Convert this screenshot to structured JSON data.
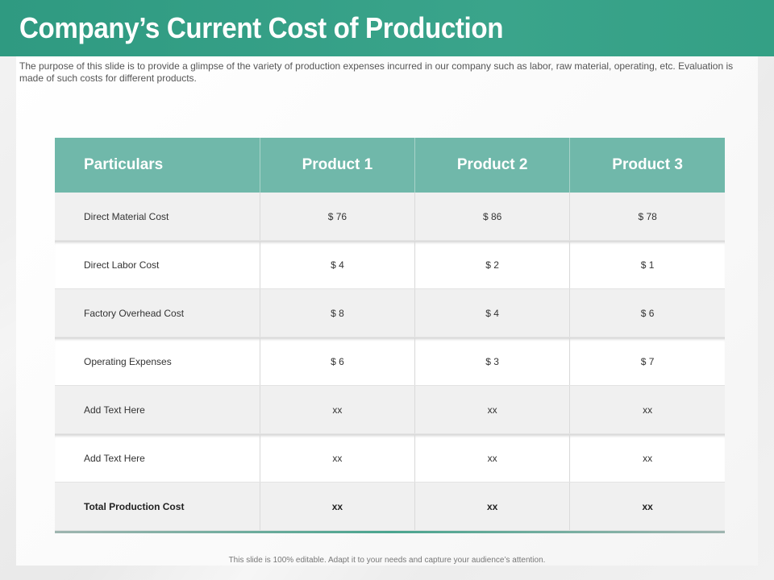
{
  "title": "Company’s Current Cost of Production",
  "subtitle": "The purpose of this slide is to provide a glimpse of the variety of production expenses incurred in our company such as labor, raw material, operating, etc. Evaluation is made of such costs for different products.",
  "table": {
    "headers": [
      "Particulars",
      "Product 1",
      "Product 2",
      "Product 3"
    ],
    "rows": [
      {
        "label": "Direct Material Cost",
        "values": [
          "$ 76",
          "$ 86",
          "$ 78"
        ]
      },
      {
        "label": "Direct Labor Cost",
        "values": [
          "$ 4",
          "$ 2",
          "$ 1"
        ]
      },
      {
        "label": "Factory Overhead Cost",
        "values": [
          "$ 8",
          "$ 4",
          "$ 6"
        ]
      },
      {
        "label": "Operating Expenses",
        "values": [
          "$ 6",
          "$ 3",
          "$ 7"
        ]
      },
      {
        "label": "Add Text Here",
        "values": [
          "xx",
          "xx",
          "xx"
        ]
      },
      {
        "label": "Add Text Here",
        "values": [
          "xx",
          "xx",
          "xx"
        ]
      },
      {
        "label": "Total Production Cost",
        "values": [
          "xx",
          "xx",
          "xx"
        ]
      }
    ]
  },
  "footer": "This slide is 100% editable. Adapt it to your needs and capture your audience’s attention.",
  "colors": {
    "title_bar": "#2f9a81",
    "table_header": "#70b8aa"
  }
}
